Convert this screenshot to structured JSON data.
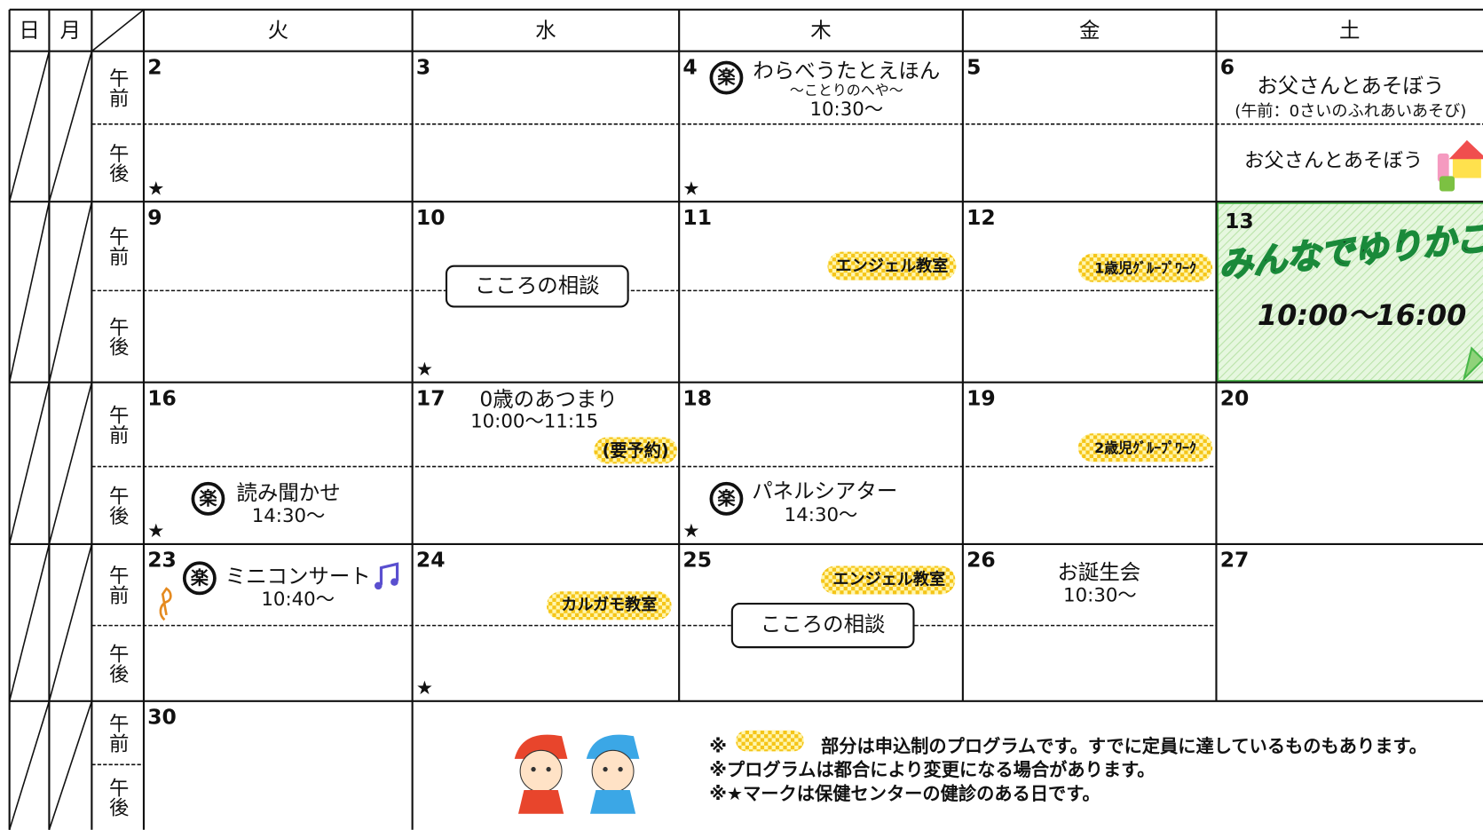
{
  "header": {
    "days": [
      "日",
      "月",
      "火",
      "水",
      "木",
      "金",
      "土"
    ]
  },
  "period_labels": {
    "am": "午前",
    "pm": "午後"
  },
  "marks": {
    "star": "★",
    "raku": "楽"
  },
  "weeks": [
    {
      "dates": [
        "2",
        "3",
        "4",
        "5",
        "6"
      ]
    },
    {
      "dates": [
        "9",
        "10",
        "11",
        "12",
        "13"
      ]
    },
    {
      "dates": [
        "16",
        "17",
        "18",
        "19",
        "20"
      ]
    },
    {
      "dates": [
        "23",
        "24",
        "25",
        "26",
        "27"
      ]
    },
    {
      "dates": [
        "30"
      ]
    }
  ],
  "events": [
    {
      "title": "わらべうたとえほん",
      "subtitle": "～ことりのへや～",
      "time": "10:30～"
    },
    {
      "title": "お父さんとあそぼう",
      "note": "(午前：0さいのふれあいあそび)"
    },
    {
      "title": "お父さんとあそぼう"
    },
    {
      "title": "こころの相談"
    },
    {
      "title": "エンジェル教室"
    },
    {
      "title": "1歳児ｸﾞﾙｰﾌﾟﾜｰｸ"
    },
    {
      "title": "みんなでゆりかご",
      "time": "10:00～16:00"
    },
    {
      "title": "0歳のあつまり",
      "time": "10:00～11:15",
      "note": "(要予約)"
    },
    {
      "title": "2歳児ｸﾞﾙｰﾌﾟﾜｰｸ"
    },
    {
      "title": "読み聞かせ",
      "time": "14:30～"
    },
    {
      "title": "パネルシアター",
      "time": "14:30～"
    },
    {
      "title": "ミニコンサート",
      "time": "10:40～"
    },
    {
      "title": "カルガモ教室"
    },
    {
      "title": "エンジェル教室"
    },
    {
      "title": "こころの相談"
    },
    {
      "title": "お誕生会",
      "time": "10:30～"
    }
  ],
  "notes": [
    "※",
    "部分は申込制のプログラムです。すでに定員に達しているものもあります。",
    "※プログラムは都合により変更になる場合があります。",
    "※★マークは保健センターの健診のある日です。"
  ]
}
